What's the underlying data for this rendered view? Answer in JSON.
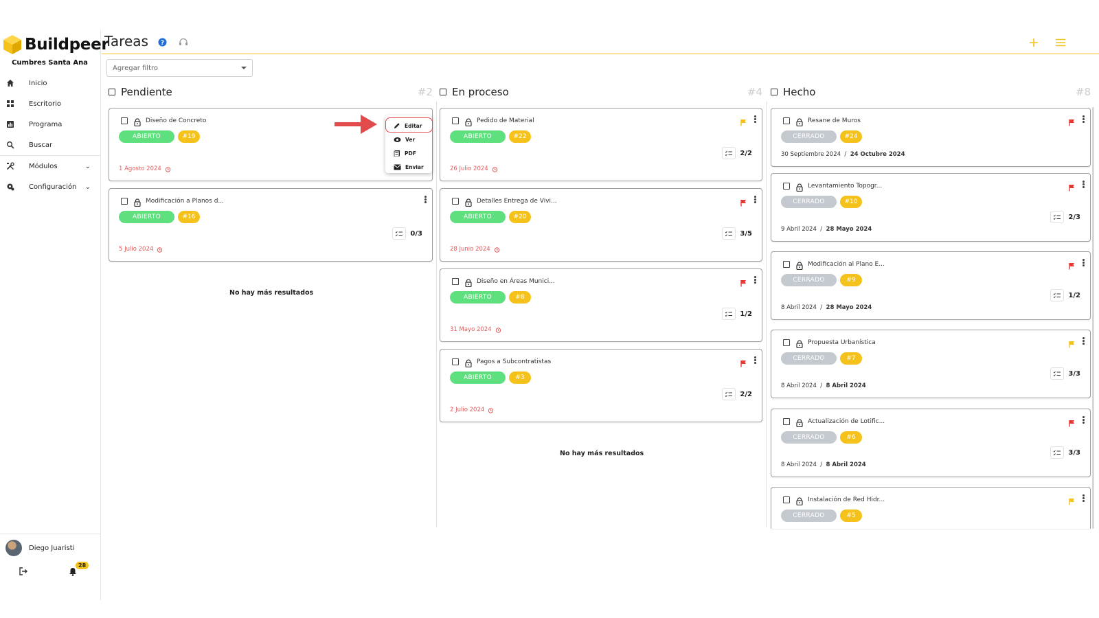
{
  "app": {
    "brand": "Buildpeer",
    "project": "Cumbres Santa Ana",
    "page_title": "Tareas"
  },
  "sidebar": {
    "items": [
      {
        "label": "Inicio",
        "icon": "home-icon"
      },
      {
        "label": "Escritorio",
        "icon": "grid-icon"
      },
      {
        "label": "Programa",
        "icon": "chart-icon"
      },
      {
        "label": "Buscar",
        "icon": "search-icon"
      },
      {
        "label": "Módulos",
        "icon": "tools-icon"
      },
      {
        "label": "Configuración",
        "icon": "settings-icon"
      }
    ],
    "user": {
      "name": "Diego Juaristi",
      "notifications": "28"
    }
  },
  "filter": {
    "placeholder": "Agregar filtro"
  },
  "colors": {
    "accent": "#f5c21b",
    "open": "#5fe07e",
    "closed": "#c4c8cf",
    "due": "#e35a5a",
    "flag_red": "#e53935",
    "flag_yellow": "#f5c21b"
  },
  "columns": [
    {
      "title": "Pendiente",
      "count": "#2",
      "cards": [
        {
          "title": "Diseño de Concreto",
          "status": "ABIERTO",
          "number": "#19",
          "date": "1 Agosto 2024"
        },
        {
          "title": "Modificación a Planos d...",
          "status": "ABIERTO",
          "number": "#16",
          "date": "5 Julio 2024",
          "checklist": "0/3"
        }
      ],
      "footer": "No hay más resultados"
    },
    {
      "title": "En proceso",
      "count": "#4",
      "cards": [
        {
          "title": "Pedido de Material",
          "status": "ABIERTO",
          "number": "#22",
          "date": "26 Julio 2024",
          "checklist": "2/2",
          "flag": "yellow"
        },
        {
          "title": "Detalles Entrega de Vivi...",
          "status": "ABIERTO",
          "number": "#20",
          "date": "28 Junio 2024",
          "checklist": "3/5",
          "flag": "red"
        },
        {
          "title": "Diseño en Áreas Munici...",
          "status": "ABIERTO",
          "number": "#8",
          "date": "31 Mayo 2024",
          "checklist": "1/2",
          "flag": "red"
        },
        {
          "title": "Pagos a Subcontratistas",
          "status": "ABIERTO",
          "number": "#3",
          "date": "2 Julio 2024",
          "checklist": "2/2",
          "flag": "red"
        }
      ],
      "footer": "No hay más resultados"
    },
    {
      "title": "Hecho",
      "count": "#8",
      "cards": [
        {
          "title": "Resane de Muros",
          "status": "CERRADO",
          "number": "#24",
          "start": "30 Septiembre 2024",
          "end": "24 Octubre 2024",
          "flag": "red"
        },
        {
          "title": "Levantamiento Topogr...",
          "status": "CERRADO",
          "number": "#10",
          "start": "9 Abril 2024",
          "end": "28 Mayo 2024",
          "checklist": "2/3",
          "flag": "red"
        },
        {
          "title": "Modificación al Plano E...",
          "status": "CERRADO",
          "number": "#9",
          "start": "8 Abril 2024",
          "end": "28 Mayo 2024",
          "checklist": "1/2",
          "flag": "red"
        },
        {
          "title": "Propuesta Urbanística",
          "status": "CERRADO",
          "number": "#7",
          "start": "8 Abril 2024",
          "end": "8 Abril 2024",
          "checklist": "3/3",
          "flag": "yellow"
        },
        {
          "title": "Actualización de Lotific...",
          "status": "CERRADO",
          "number": "#6",
          "start": "8 Abril 2024",
          "end": "8 Abril 2024",
          "checklist": "3/3",
          "flag": "red"
        },
        {
          "title": "Instalación de Red Hidr...",
          "status": "CERRADO",
          "number": "#5",
          "flag": "yellow"
        }
      ]
    }
  ],
  "context_menu": {
    "items": [
      "Editar",
      "Ver",
      "PDF",
      "Enviar"
    ]
  }
}
